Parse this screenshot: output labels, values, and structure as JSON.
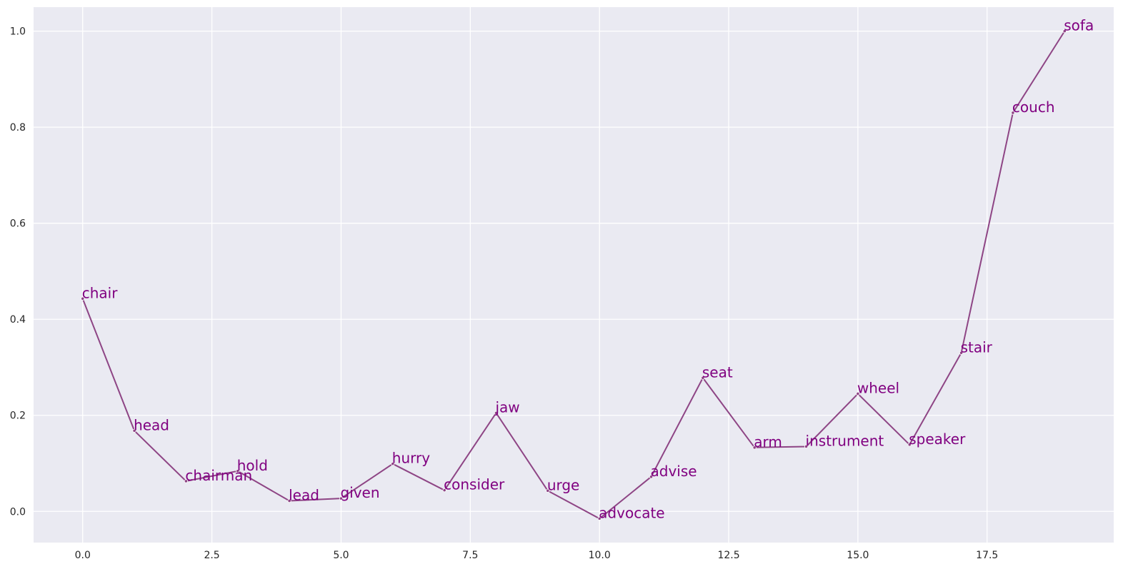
{
  "chart_data": {
    "type": "line",
    "title": "",
    "xlabel": "",
    "ylabel": "",
    "xlim": [
      -0.95,
      19.95
    ],
    "ylim": [
      -0.065,
      1.05
    ],
    "grid": true,
    "x_ticks": [
      0.0,
      2.5,
      5.0,
      7.5,
      10.0,
      12.5,
      15.0,
      17.5
    ],
    "x_tick_labels": [
      "0.0",
      "2.5",
      "5.0",
      "7.5",
      "10.0",
      "12.5",
      "15.0",
      "17.5"
    ],
    "y_ticks": [
      0.0,
      0.2,
      0.4,
      0.6,
      0.8,
      1.0
    ],
    "y_tick_labels": [
      "0.0",
      "0.2",
      "0.4",
      "0.6",
      "0.8",
      "1.0"
    ],
    "colors": {
      "background": "#EAEAF2",
      "grid": "#FFFFFF",
      "line": "#8E4585",
      "label": "#800080"
    },
    "series": [
      {
        "x": [
          0,
          1,
          2,
          3,
          4,
          5,
          6,
          7,
          8,
          9,
          10,
          11,
          12,
          13,
          14,
          15,
          16,
          17,
          18,
          19
        ],
        "y": [
          0.443,
          0.168,
          0.063,
          0.084,
          0.022,
          0.027,
          0.099,
          0.044,
          0.205,
          0.043,
          -0.015,
          0.072,
          0.278,
          0.133,
          0.135,
          0.245,
          0.139,
          0.33,
          0.83,
          1.0
        ],
        "labels": [
          "chair",
          "head",
          "chairman",
          "hold",
          "lead",
          "given",
          "hurry",
          "consider",
          "jaw",
          "urge",
          "advocate",
          "advise",
          "seat",
          "arm",
          "instrument",
          "wheel",
          "speaker",
          "stair",
          "couch",
          "sofa"
        ]
      }
    ]
  }
}
